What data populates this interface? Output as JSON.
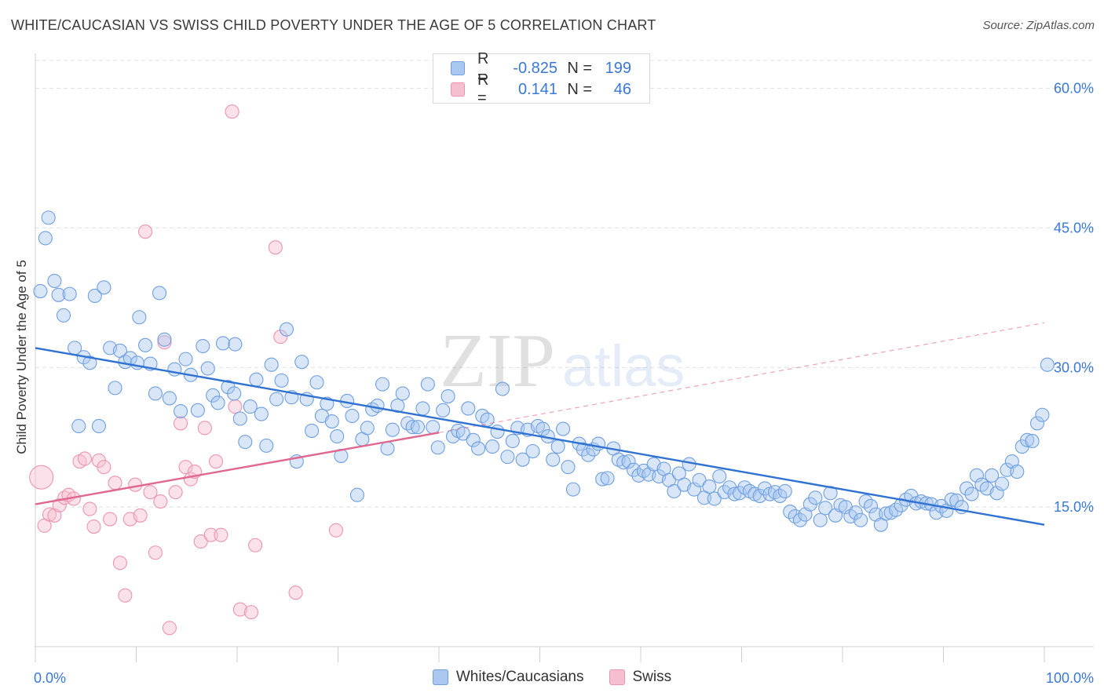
{
  "title": "WHITE/CAUCASIAN VS SWISS CHILD POVERTY UNDER THE AGE OF 5 CORRELATION CHART",
  "source": "Source: ZipAtlas.com",
  "watermark": {
    "zip": "ZIP",
    "atlas": "atlas"
  },
  "colors": {
    "blue_fill": "#a9c7ef",
    "blue_stroke": "#6f9fe0",
    "blue_line": "#2f72d1",
    "pink_fill": "#f6bfd0",
    "pink_stroke": "#ec94b1",
    "pink_line": "#e0678f",
    "tick_label": "#3a78d6",
    "grid": "#e0e0e0"
  },
  "legend_top": [
    {
      "r_label": "R =",
      "r_value": "-0.825",
      "n_label": "N =",
      "n_value": "199"
    },
    {
      "r_label": "R =",
      "r_value": "0.141",
      "n_label": "N =",
      "n_value": "46"
    }
  ],
  "chart_data": {
    "type": "scatter",
    "xlabel": "",
    "ylabel": "Child Poverty Under the Age of 5",
    "xlim": [
      0,
      100
    ],
    "ylim": [
      0,
      63
    ],
    "x_tick_labels": [
      {
        "value": 0,
        "label": "0.0%"
      },
      {
        "value": 100,
        "label": "100.0%"
      }
    ],
    "y_tick_labels": [
      {
        "value": 15,
        "label": "15.0%"
      },
      {
        "value": 30,
        "label": "30.0%"
      },
      {
        "value": 45,
        "label": "45.0%"
      },
      {
        "value": 60,
        "label": "60.0%"
      }
    ],
    "grid": true,
    "legend_position": "bottom-center",
    "series": [
      {
        "name": "Whites/Caucasians",
        "stats": {
          "r": -0.825,
          "n": 199
        },
        "trend": {
          "x": [
            0,
            100
          ],
          "y": [
            32.1,
            13.1
          ]
        },
        "points": [
          [
            0.5,
            38.2
          ],
          [
            1,
            43.9
          ],
          [
            1.3,
            46.1
          ],
          [
            1.9,
            39.3
          ],
          [
            2.3,
            37.8
          ],
          [
            2.8,
            35.6
          ],
          [
            3.4,
            37.9
          ],
          [
            3.9,
            32.1
          ],
          [
            4.3,
            23.7
          ],
          [
            4.8,
            31.1
          ],
          [
            5.4,
            30.5
          ],
          [
            5.9,
            37.7
          ],
          [
            6.3,
            23.7
          ],
          [
            6.8,
            38.6
          ],
          [
            7.4,
            32.1
          ],
          [
            7.9,
            27.8
          ],
          [
            8.4,
            31.8
          ],
          [
            8.9,
            30.6
          ],
          [
            9.4,
            31.0
          ],
          [
            10.1,
            30.5
          ],
          [
            10.3,
            35.4
          ],
          [
            10.9,
            32.4
          ],
          [
            11.4,
            30.4
          ],
          [
            11.9,
            27.2
          ],
          [
            12.3,
            38.0
          ],
          [
            12.8,
            33.0
          ],
          [
            13.3,
            26.7
          ],
          [
            13.8,
            29.8
          ],
          [
            14.4,
            25.3
          ],
          [
            14.9,
            30.9
          ],
          [
            15.4,
            29.2
          ],
          [
            16.1,
            25.4
          ],
          [
            16.6,
            32.3
          ],
          [
            17.1,
            29.9
          ],
          [
            17.6,
            27.0
          ],
          [
            18.1,
            26.2
          ],
          [
            18.6,
            32.6
          ],
          [
            19.1,
            27.9
          ],
          [
            19.7,
            27.2
          ],
          [
            19.8,
            32.5
          ],
          [
            20.3,
            24.5
          ],
          [
            20.8,
            22.0
          ],
          [
            21.3,
            25.8
          ],
          [
            21.9,
            28.7
          ],
          [
            22.4,
            25.0
          ],
          [
            22.9,
            21.6
          ],
          [
            23.4,
            30.3
          ],
          [
            23.9,
            26.6
          ],
          [
            24.4,
            28.6
          ],
          [
            24.9,
            34.1
          ],
          [
            25.4,
            26.8
          ],
          [
            25.9,
            19.9
          ],
          [
            26.4,
            30.6
          ],
          [
            26.9,
            26.6
          ],
          [
            27.4,
            23.2
          ],
          [
            27.9,
            28.4
          ],
          [
            28.4,
            24.8
          ],
          [
            28.9,
            26.1
          ],
          [
            29.4,
            24.2
          ],
          [
            29.9,
            22.6
          ],
          [
            30.3,
            20.5
          ],
          [
            30.9,
            26.4
          ],
          [
            31.4,
            24.8
          ],
          [
            31.9,
            16.3
          ],
          [
            32.4,
            22.3
          ],
          [
            32.9,
            23.5
          ],
          [
            33.4,
            25.5
          ],
          [
            33.9,
            25.9
          ],
          [
            34.4,
            28.2
          ],
          [
            34.9,
            21.3
          ],
          [
            35.4,
            23.3
          ],
          [
            35.9,
            25.9
          ],
          [
            36.4,
            27.2
          ],
          [
            36.9,
            24.0
          ],
          [
            37.4,
            23.6
          ],
          [
            37.9,
            23.6
          ],
          [
            38.4,
            25.6
          ],
          [
            38.9,
            28.2
          ],
          [
            39.4,
            23.6
          ],
          [
            39.9,
            21.4
          ],
          [
            40.4,
            25.4
          ],
          [
            40.9,
            26.9
          ],
          [
            41.4,
            22.6
          ],
          [
            41.9,
            23.2
          ],
          [
            42.4,
            22.9
          ],
          [
            42.9,
            25.6
          ],
          [
            43.4,
            22.2
          ],
          [
            43.9,
            21.3
          ],
          [
            44.3,
            24.8
          ],
          [
            44.8,
            24.4
          ],
          [
            45.3,
            21.5
          ],
          [
            45.8,
            23.1
          ],
          [
            46.3,
            27.7
          ],
          [
            46.8,
            20.4
          ],
          [
            47.3,
            22.1
          ],
          [
            47.8,
            23.5
          ],
          [
            48.3,
            20.1
          ],
          [
            48.8,
            23.3
          ],
          [
            49.3,
            21.0
          ],
          [
            49.8,
            23.7
          ],
          [
            50.3,
            23.4
          ],
          [
            50.8,
            22.6
          ],
          [
            51.3,
            20.1
          ],
          [
            51.8,
            21.5
          ],
          [
            52.3,
            23.4
          ],
          [
            52.8,
            19.3
          ],
          [
            53.3,
            16.9
          ],
          [
            53.9,
            21.8
          ],
          [
            54.3,
            21.2
          ],
          [
            54.8,
            20.6
          ],
          [
            55.3,
            21.2
          ],
          [
            55.8,
            21.8
          ],
          [
            56.2,
            18.0
          ],
          [
            56.7,
            18.1
          ],
          [
            57.3,
            21.3
          ],
          [
            57.8,
            20.1
          ],
          [
            58.3,
            19.8
          ],
          [
            58.8,
            19.9
          ],
          [
            59.3,
            19.0
          ],
          [
            59.8,
            18.4
          ],
          [
            60.3,
            18.9
          ],
          [
            60.8,
            18.5
          ],
          [
            61.3,
            19.6
          ],
          [
            61.8,
            18.3
          ],
          [
            62.3,
            19.1
          ],
          [
            62.8,
            17.9
          ],
          [
            63.3,
            16.7
          ],
          [
            63.8,
            18.6
          ],
          [
            64.3,
            17.4
          ],
          [
            64.8,
            19.6
          ],
          [
            65.3,
            16.9
          ],
          [
            65.8,
            17.9
          ],
          [
            66.3,
            16.0
          ],
          [
            66.8,
            17.2
          ],
          [
            67.3,
            15.9
          ],
          [
            67.8,
            18.3
          ],
          [
            68.3,
            16.6
          ],
          [
            68.8,
            17.1
          ],
          [
            69.3,
            16.4
          ],
          [
            69.8,
            16.5
          ],
          [
            70.3,
            17.1
          ],
          [
            70.8,
            16.7
          ],
          [
            71.3,
            16.4
          ],
          [
            71.8,
            16.2
          ],
          [
            72.3,
            17.0
          ],
          [
            72.8,
            16.4
          ],
          [
            73.3,
            16.6
          ],
          [
            73.8,
            16.2
          ],
          [
            74.3,
            16.7
          ],
          [
            74.8,
            14.5
          ],
          [
            75.3,
            14.0
          ],
          [
            75.8,
            13.6
          ],
          [
            76.3,
            14.2
          ],
          [
            76.8,
            15.3
          ],
          [
            77.3,
            16.0
          ],
          [
            77.8,
            13.6
          ],
          [
            78.3,
            14.9
          ],
          [
            78.8,
            16.5
          ],
          [
            79.3,
            14.1
          ],
          [
            79.8,
            15.2
          ],
          [
            80.3,
            15.0
          ],
          [
            80.8,
            14.0
          ],
          [
            81.3,
            14.4
          ],
          [
            81.8,
            13.6
          ],
          [
            82.3,
            15.6
          ],
          [
            82.8,
            15.1
          ],
          [
            83.3,
            14.2
          ],
          [
            83.8,
            13.1
          ],
          [
            84.3,
            14.3
          ],
          [
            84.8,
            14.4
          ],
          [
            85.3,
            14.7
          ],
          [
            85.8,
            15.2
          ],
          [
            86.3,
            15.8
          ],
          [
            86.8,
            16.2
          ],
          [
            87.3,
            15.4
          ],
          [
            87.8,
            15.6
          ],
          [
            88.3,
            15.4
          ],
          [
            88.8,
            15.3
          ],
          [
            89.3,
            14.4
          ],
          [
            89.8,
            15.1
          ],
          [
            90.3,
            14.6
          ],
          [
            90.8,
            15.8
          ],
          [
            91.3,
            15.7
          ],
          [
            91.8,
            15.0
          ],
          [
            92.3,
            17.0
          ],
          [
            92.8,
            16.4
          ],
          [
            93.3,
            18.4
          ],
          [
            93.8,
            17.4
          ],
          [
            94.3,
            17.0
          ],
          [
            94.8,
            18.4
          ],
          [
            95.3,
            16.5
          ],
          [
            95.8,
            17.5
          ],
          [
            96.3,
            19.0
          ],
          [
            96.8,
            19.9
          ],
          [
            97.3,
            18.8
          ],
          [
            97.8,
            21.5
          ],
          [
            98.3,
            22.2
          ],
          [
            98.8,
            22.1
          ],
          [
            99.3,
            24.0
          ],
          [
            99.8,
            24.9
          ],
          [
            100.3,
            30.3
          ]
        ]
      },
      {
        "name": "Swiss",
        "stats": {
          "r": 0.141,
          "n": 46
        },
        "trend": {
          "x": [
            0,
            40
          ],
          "y": [
            15.3,
            23.0
          ]
        },
        "trend_extension": {
          "x": [
            40,
            100
          ],
          "y": [
            23.0,
            34.8
          ]
        },
        "points": [
          [
            0.6,
            18.2
          ],
          [
            0.9,
            13.0
          ],
          [
            1.4,
            14.2
          ],
          [
            1.9,
            14.1
          ],
          [
            2.4,
            15.2
          ],
          [
            2.9,
            16.0
          ],
          [
            3.3,
            16.3
          ],
          [
            3.8,
            15.9
          ],
          [
            4.4,
            19.9
          ],
          [
            4.9,
            20.2
          ],
          [
            5.4,
            14.8
          ],
          [
            5.8,
            12.9
          ],
          [
            6.3,
            20.0
          ],
          [
            6.8,
            19.3
          ],
          [
            7.4,
            13.7
          ],
          [
            7.9,
            17.6
          ],
          [
            8.4,
            9.0
          ],
          [
            8.9,
            5.5
          ],
          [
            9.4,
            13.7
          ],
          [
            9.9,
            17.4
          ],
          [
            10.4,
            14.1
          ],
          [
            10.9,
            44.6
          ],
          [
            11.4,
            16.6
          ],
          [
            11.9,
            10.1
          ],
          [
            12.4,
            15.6
          ],
          [
            12.8,
            32.7
          ],
          [
            13.3,
            2.0
          ],
          [
            13.9,
            16.6
          ],
          [
            14.4,
            24.0
          ],
          [
            14.9,
            19.3
          ],
          [
            15.4,
            18.0
          ],
          [
            15.8,
            18.8
          ],
          [
            16.4,
            11.3
          ],
          [
            16.8,
            23.5
          ],
          [
            17.4,
            12.0
          ],
          [
            17.9,
            19.9
          ],
          [
            18.4,
            12.0
          ],
          [
            19.5,
            57.5
          ],
          [
            19.8,
            25.8
          ],
          [
            20.3,
            4.0
          ],
          [
            21.4,
            3.7
          ],
          [
            21.8,
            10.9
          ],
          [
            23.8,
            42.9
          ],
          [
            24.3,
            33.3
          ],
          [
            25.8,
            5.8
          ],
          [
            29.8,
            12.5
          ]
        ]
      }
    ]
  },
  "legend_bottom": [
    {
      "label": "Whites/Caucasians"
    },
    {
      "label": "Swiss"
    }
  ]
}
